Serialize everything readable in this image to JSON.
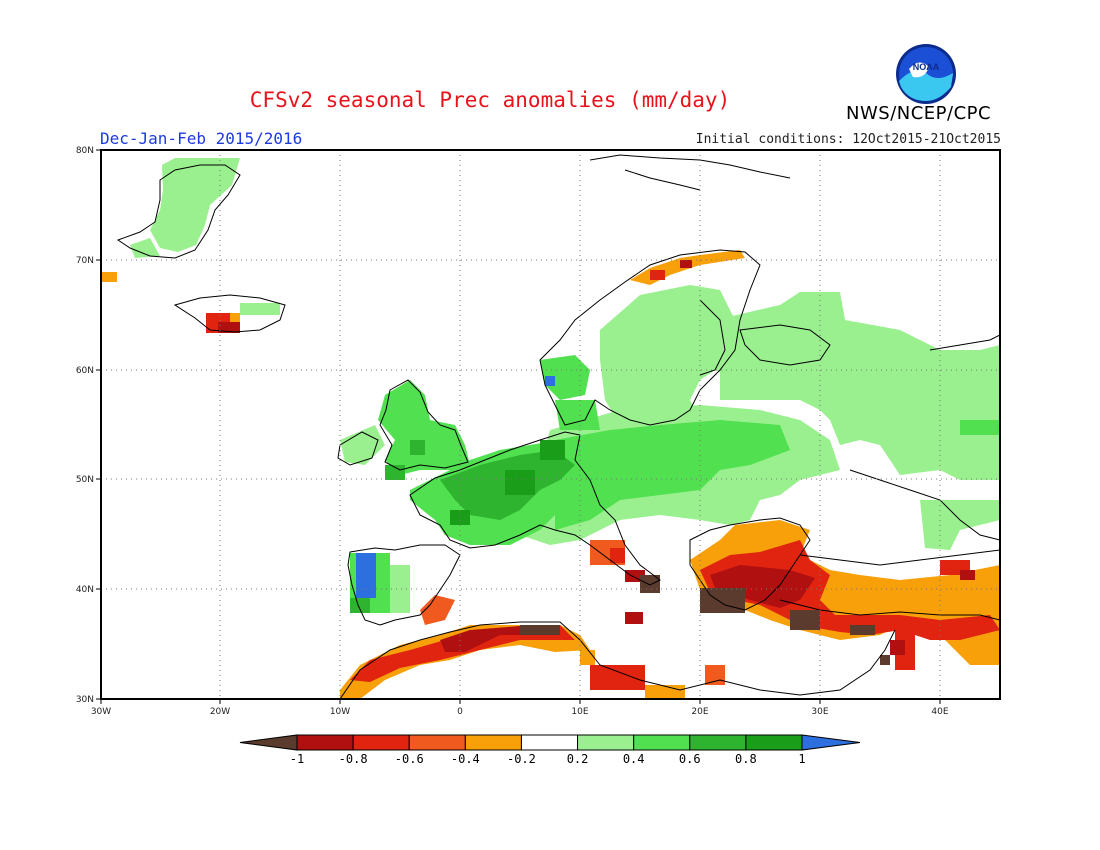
{
  "title": "CFSv2 seasonal Prec anomalies (mm/day)",
  "agency": "NWS/NCEP/CPC",
  "logo_text": "NOAA",
  "season": "Dec-Jan-Feb 2015/2016",
  "initial_conditions": "Initial conditions: 12Oct2015-21Oct2015",
  "lat_labels": [
    "80N",
    "70N",
    "60N",
    "50N",
    "40N",
    "30N"
  ],
  "lon_labels": [
    "30W",
    "20W",
    "10W",
    "0",
    "10E",
    "20E",
    "30E",
    "40E"
  ],
  "colorbar": {
    "ticks": [
      "-1",
      "-0.8",
      "-0.6",
      "-0.4",
      "-0.2",
      "0.2",
      "0.4",
      "0.6",
      "0.8",
      "1"
    ],
    "colors": [
      "#5b3b2e",
      "#b01010",
      "#e02410",
      "#f05a1e",
      "#f7a00a",
      "#ffffff",
      "#9af08e",
      "#50e050",
      "#2fb42f",
      "#1a9e1a",
      "#2e6fe0"
    ]
  },
  "map_extent": {
    "lon": [
      -30,
      45
    ],
    "lat": [
      30,
      80
    ]
  },
  "anomaly_regions": [
    {
      "name": "greenland-east",
      "cat": "0.2-0.4",
      "lon": [
        -25,
        -22
      ],
      "lat": [
        72,
        77
      ]
    },
    {
      "name": "iceland-south",
      "cat": "-0.8--0.6",
      "lon": [
        -21,
        -18
      ],
      "lat": [
        63.5,
        65
      ]
    },
    {
      "name": "british-isles",
      "cat": "0.4-0.6",
      "lon": [
        -10,
        0
      ],
      "lat": [
        50,
        57
      ]
    },
    {
      "name": "france-germany",
      "cat": "0.6-0.8",
      "lon": [
        -4,
        15
      ],
      "lat": [
        44,
        54
      ]
    },
    {
      "name": "scandinavia",
      "cat": "0.2-0.4",
      "lon": [
        12,
        30
      ],
      "lat": [
        58,
        70
      ]
    },
    {
      "name": "russia-west",
      "cat": "0.2-0.4",
      "lon": [
        25,
        45
      ],
      "lat": [
        50,
        62
      ]
    },
    {
      "name": "iberia-west",
      "cat": "0.6-0.8",
      "lon": [
        -9,
        -6
      ],
      "lat": [
        37,
        43
      ]
    },
    {
      "name": "north-africa",
      "cat": "-0.8--0.6",
      "lon": [
        -10,
        10
      ],
      "lat": [
        31,
        37
      ]
    },
    {
      "name": "greece-turkey",
      "cat": "-1--0.8",
      "lon": [
        18,
        35
      ],
      "lat": [
        35,
        42
      ]
    },
    {
      "name": "middle-east",
      "cat": "-0.6--0.4",
      "lon": [
        34,
        45
      ],
      "lat": [
        32,
        38
      ]
    }
  ]
}
